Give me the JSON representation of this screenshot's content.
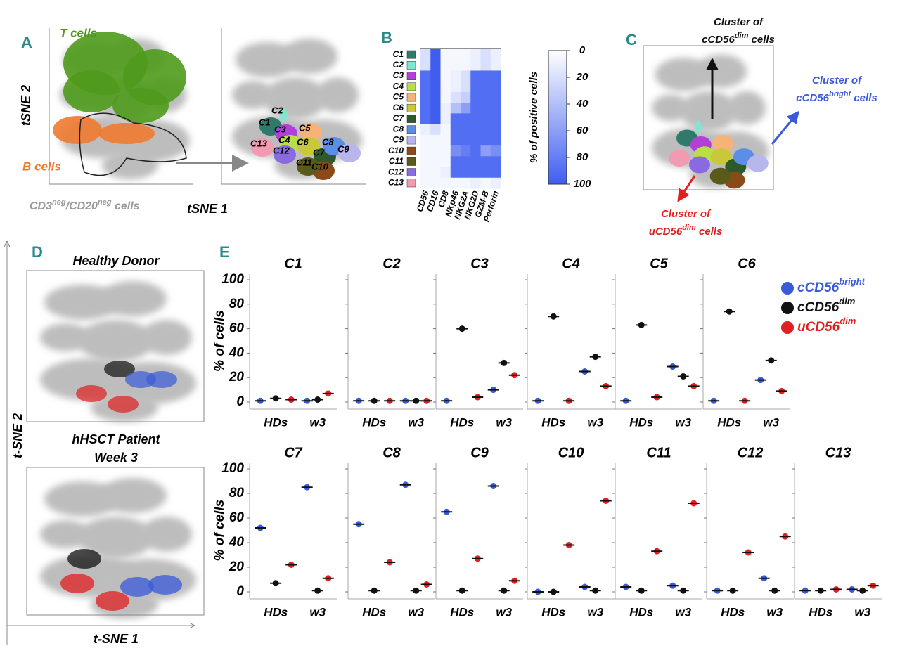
{
  "panel_labels": [
    "A",
    "B",
    "C",
    "D",
    "E"
  ],
  "panel_a": {
    "t_cells": "T cells",
    "b_cells": "B cells",
    "subset": [
      {
        "text": "CD3"
      },
      {
        "text": "neg",
        "sup": true
      },
      {
        "text": "/CD20"
      },
      {
        "text": "neg",
        "sup": true
      },
      {
        "text": " cells"
      }
    ],
    "y_label": "tSNE 2",
    "x_label": "tSNE 1"
  },
  "panel_c": {
    "annotations": [
      {
        "line1": "Cluster of",
        "base": "cCD56",
        "sup": "dim",
        "end": " cells",
        "color": "#111111"
      },
      {
        "line1": "Cluster of",
        "base": "cCD56",
        "sup": "bright",
        "end": " cells",
        "color": "#3a5bd9"
      },
      {
        "line1": "Cluster of",
        "base": "uCD56",
        "sup": "dim",
        "end": " cells",
        "color": "#e02020"
      }
    ]
  },
  "panel_d": {
    "top_title": "Healthy Donor",
    "bottom_title": [
      "hHSCT Patient",
      "Week 3"
    ],
    "y_label": "t-SNE 2",
    "x_label": "t-SNE 1"
  },
  "legend": [
    {
      "name": "cCD56",
      "sup": "bright",
      "color": "#3a5bd9"
    },
    {
      "name": "cCD56",
      "sup": "dim",
      "color": "#111111"
    },
    {
      "name": "uCD56",
      "sup": "dim",
      "color": "#e02020"
    }
  ],
  "chart_data": [
    {
      "type": "heatmap",
      "rows": [
        "C1",
        "C2",
        "C3",
        "C4",
        "C5",
        "C6",
        "C7",
        "C8",
        "C9",
        "C10",
        "C11",
        "C12",
        "C13"
      ],
      "row_colors": [
        "#2f7a6a",
        "#7de8d0",
        "#b23fd6",
        "#b8e040",
        "#f7b27a",
        "#c8c83a",
        "#2e5a2a",
        "#5b8ee6",
        "#b7b7ee",
        "#8b4a1a",
        "#5a5a1a",
        "#8a6ae0",
        "#f29ab2"
      ],
      "columns": [
        "CD56",
        "CD16",
        "CD8",
        "NKp46",
        "NKG2A",
        "NKG2D",
        "GZM-B",
        "Perforin"
      ],
      "values": [
        [
          20,
          100,
          5,
          5,
          5,
          10,
          20,
          10
        ],
        [
          20,
          100,
          5,
          5,
          5,
          10,
          20,
          10
        ],
        [
          90,
          100,
          5,
          10,
          20,
          90,
          90,
          90
        ],
        [
          90,
          100,
          5,
          10,
          20,
          90,
          90,
          90
        ],
        [
          90,
          100,
          5,
          20,
          30,
          90,
          90,
          90
        ],
        [
          90,
          100,
          10,
          40,
          60,
          90,
          90,
          90
        ],
        [
          90,
          100,
          10,
          90,
          90,
          90,
          90,
          90
        ],
        [
          10,
          20,
          5,
          90,
          90,
          90,
          90,
          90
        ],
        [
          5,
          5,
          5,
          90,
          90,
          90,
          90,
          90
        ],
        [
          5,
          5,
          5,
          70,
          80,
          90,
          60,
          70
        ],
        [
          5,
          5,
          5,
          90,
          90,
          90,
          90,
          90
        ],
        [
          5,
          5,
          10,
          90,
          90,
          90,
          90,
          90
        ],
        [
          5,
          5,
          5,
          5,
          5,
          10,
          5,
          10
        ]
      ],
      "colormap": [
        "#ffffff",
        "#3f5ef0"
      ],
      "zlim": [
        0,
        100
      ],
      "zticks": [
        0,
        20,
        40,
        60,
        80,
        100
      ],
      "colorbar_label": "% of positive cells"
    },
    {
      "type": "strip",
      "title": "C1",
      "categories": [
        "HDs",
        "w3"
      ],
      "series": [
        {
          "values": [
            1,
            1
          ]
        },
        {
          "values": [
            3,
            2
          ]
        },
        {
          "values": [
            2,
            7
          ]
        }
      ],
      "ylim": [
        0,
        100
      ],
      "yticks": [
        0,
        20,
        40,
        60,
        80,
        100
      ],
      "y_label": "% of cells"
    },
    {
      "type": "strip",
      "title": "C2",
      "categories": [
        "HDs",
        "w3"
      ],
      "series": [
        {
          "values": [
            1,
            1
          ]
        },
        {
          "values": [
            1,
            1
          ]
        },
        {
          "values": [
            1,
            1
          ]
        }
      ],
      "ylim": [
        0,
        100
      ],
      "yticks": [
        0,
        20,
        40,
        60,
        80,
        100
      ]
    },
    {
      "type": "strip",
      "title": "C3",
      "categories": [
        "HDs",
        "w3"
      ],
      "series": [
        {
          "values": [
            1,
            10
          ]
        },
        {
          "values": [
            60,
            32
          ]
        },
        {
          "values": [
            4,
            22
          ]
        }
      ],
      "ylim": [
        0,
        100
      ],
      "yticks": [
        0,
        20,
        40,
        60,
        80,
        100
      ]
    },
    {
      "type": "strip",
      "title": "C4",
      "categories": [
        "HDs",
        "w3"
      ],
      "series": [
        {
          "values": [
            1,
            25
          ]
        },
        {
          "values": [
            70,
            37
          ]
        },
        {
          "values": [
            1,
            13
          ]
        }
      ],
      "ylim": [
        0,
        100
      ],
      "yticks": [
        0,
        20,
        40,
        60,
        80,
        100
      ]
    },
    {
      "type": "strip",
      "title": "C5",
      "categories": [
        "HDs",
        "w3"
      ],
      "series": [
        {
          "values": [
            1,
            29
          ]
        },
        {
          "values": [
            63,
            21
          ]
        },
        {
          "values": [
            4,
            13
          ]
        }
      ],
      "ylim": [
        0,
        100
      ],
      "yticks": [
        0,
        20,
        40,
        60,
        80,
        100
      ]
    },
    {
      "type": "strip",
      "title": "C6",
      "categories": [
        "HDs",
        "w3"
      ],
      "series": [
        {
          "values": [
            1,
            18
          ]
        },
        {
          "values": [
            74,
            34
          ]
        },
        {
          "values": [
            1,
            9
          ]
        }
      ],
      "ylim": [
        0,
        100
      ],
      "yticks": [
        0,
        20,
        40,
        60,
        80,
        100
      ]
    },
    {
      "type": "strip",
      "title": "C7",
      "categories": [
        "HDs",
        "w3"
      ],
      "series": [
        {
          "values": [
            52,
            85
          ]
        },
        {
          "values": [
            7,
            1
          ]
        },
        {
          "values": [
            22,
            11
          ]
        }
      ],
      "ylim": [
        0,
        100
      ],
      "yticks": [
        0,
        20,
        40,
        60,
        80,
        100
      ],
      "y_label": "% of cells"
    },
    {
      "type": "strip",
      "title": "C8",
      "categories": [
        "HDs",
        "w3"
      ],
      "series": [
        {
          "values": [
            55,
            87
          ]
        },
        {
          "values": [
            1,
            1
          ]
        },
        {
          "values": [
            24,
            6
          ]
        }
      ],
      "ylim": [
        0,
        100
      ],
      "yticks": [
        0,
        20,
        40,
        60,
        80,
        100
      ]
    },
    {
      "type": "strip",
      "title": "C9",
      "categories": [
        "HDs",
        "w3"
      ],
      "series": [
        {
          "values": [
            65,
            86
          ]
        },
        {
          "values": [
            1,
            1
          ]
        },
        {
          "values": [
            27,
            9
          ]
        }
      ],
      "ylim": [
        0,
        100
      ],
      "yticks": [
        0,
        20,
        40,
        60,
        80,
        100
      ]
    },
    {
      "type": "strip",
      "title": "C10",
      "categories": [
        "HDs",
        "w3"
      ],
      "series": [
        {
          "values": [
            0,
            4
          ]
        },
        {
          "values": [
            0,
            1
          ]
        },
        {
          "values": [
            38,
            74
          ]
        }
      ],
      "ylim": [
        0,
        100
      ],
      "yticks": [
        0,
        20,
        40,
        60,
        80,
        100
      ]
    },
    {
      "type": "strip",
      "title": "C11",
      "categories": [
        "HDs",
        "w3"
      ],
      "series": [
        {
          "values": [
            4,
            5
          ]
        },
        {
          "values": [
            1,
            1
          ]
        },
        {
          "values": [
            33,
            72
          ]
        }
      ],
      "ylim": [
        0,
        100
      ],
      "yticks": [
        0,
        20,
        40,
        60,
        80,
        100
      ]
    },
    {
      "type": "strip",
      "title": "C12",
      "categories": [
        "HDs",
        "w3"
      ],
      "series": [
        {
          "values": [
            1,
            11
          ]
        },
        {
          "values": [
            1,
            1
          ]
        },
        {
          "values": [
            32,
            45
          ]
        }
      ],
      "ylim": [
        0,
        100
      ],
      "yticks": [
        0,
        20,
        40,
        60,
        80,
        100
      ]
    },
    {
      "type": "strip",
      "title": "C13",
      "categories": [
        "HDs",
        "w3"
      ],
      "series": [
        {
          "values": [
            1,
            2
          ]
        },
        {
          "values": [
            1,
            1
          ]
        },
        {
          "values": [
            2,
            5
          ]
        }
      ],
      "ylim": [
        0,
        100
      ],
      "yticks": [
        0,
        20,
        40,
        60,
        80,
        100
      ]
    }
  ]
}
